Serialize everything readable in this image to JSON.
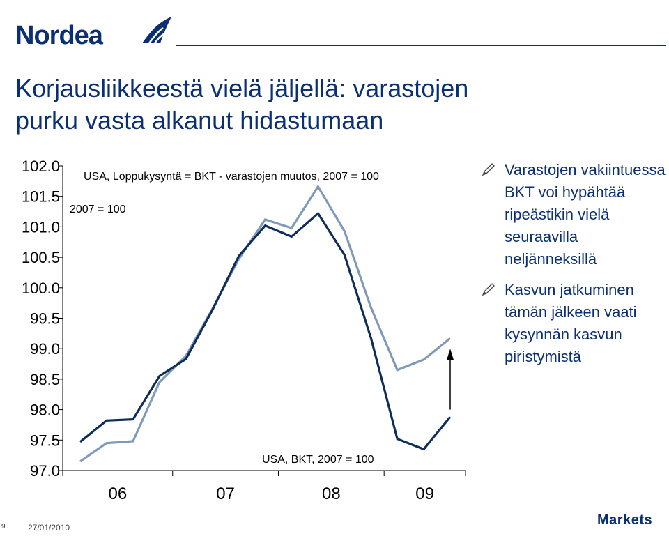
{
  "header": {
    "logo_text": "Nordea",
    "brand_color": "#0a2f74"
  },
  "title": {
    "line1": "Korjausliikkeestä vielä jäljellä: varastojen",
    "line2": "purku vasta alkanut hidastumaan"
  },
  "chart_data": {
    "type": "line",
    "title": "USA, Loppukysyntä = BKT - varastojen muutos, 2007 = 100",
    "ylabel": "2007 = 100",
    "ylim": [
      97.0,
      102.0
    ],
    "yticks": [
      "102.0",
      "101.5",
      "101.0",
      "100.5",
      "100.0",
      "99.5",
      "99.0",
      "98.5",
      "98.0",
      "97.5",
      "97.0"
    ],
    "xtick_labels": [
      "06",
      "07",
      "08",
      "09"
    ],
    "x": [
      "2006Q1",
      "2006Q2",
      "2006Q3",
      "2006Q4",
      "2007Q1",
      "2007Q2",
      "2007Q3",
      "2007Q4",
      "2008Q1",
      "2008Q2",
      "2008Q3",
      "2008Q4",
      "2009Q1",
      "2009Q2",
      "2009Q3"
    ],
    "series": [
      {
        "name": "USA, Loppukysyntä = BKT - varastojen muutos, 2007 = 100",
        "color": "#7f9ab9",
        "values": [
          97.15,
          97.45,
          97.48,
          98.45,
          98.88,
          99.65,
          100.47,
          101.12,
          100.98,
          101.66,
          100.93,
          99.68,
          98.65,
          98.82,
          99.17
        ]
      },
      {
        "name": "USA, BKT, 2007 = 100",
        "color": "#0f2d5c",
        "values": [
          97.47,
          97.82,
          97.84,
          98.55,
          98.83,
          99.63,
          100.52,
          101.02,
          100.84,
          101.22,
          100.54,
          99.18,
          97.52,
          97.35,
          97.88
        ]
      }
    ],
    "annotations": [
      {
        "type": "arrow",
        "x": "2009Q3",
        "from": 98.0,
        "to": 99.0
      }
    ],
    "grid": false,
    "legend": "inline labels"
  },
  "bullets": [
    {
      "icon": "pen-icon",
      "text": "Varastojen vakiintuessa BKT voi hypähtää ripeästikin vielä seuraavilla neljänneksillä"
    },
    {
      "icon": "pen-icon",
      "text": "Kasvun jatkuminen tämän jälkeen vaati kysynnän kasvun piristymistä"
    }
  ],
  "footer": {
    "page_number": "9",
    "date": "27/01/2010",
    "markets_logo": "Markets"
  }
}
